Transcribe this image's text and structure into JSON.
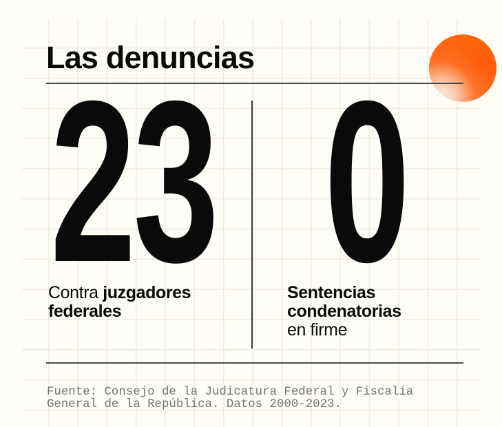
{
  "title": "Las denuncias",
  "accent_color": "#ff5f0f",
  "stats": [
    {
      "value": "23",
      "caption_lines": [
        [
          {
            "text": "Contra ",
            "weight": "regular"
          },
          {
            "text": "juzgadores",
            "weight": "bold"
          }
        ],
        [
          {
            "text": "federales",
            "weight": "bold"
          }
        ]
      ]
    },
    {
      "value": "0",
      "caption_lines": [
        [
          {
            "text": "Sentencias",
            "weight": "bold"
          }
        ],
        [
          {
            "text": "condenatorias",
            "weight": "bold"
          }
        ],
        [
          {
            "text": "en firme",
            "weight": "regular"
          }
        ]
      ]
    }
  ],
  "source": {
    "line1": "Fuente: Consejo de la Judicatura Federal y Fiscalía",
    "line2": "General de la República. Datos 2000-2023."
  }
}
